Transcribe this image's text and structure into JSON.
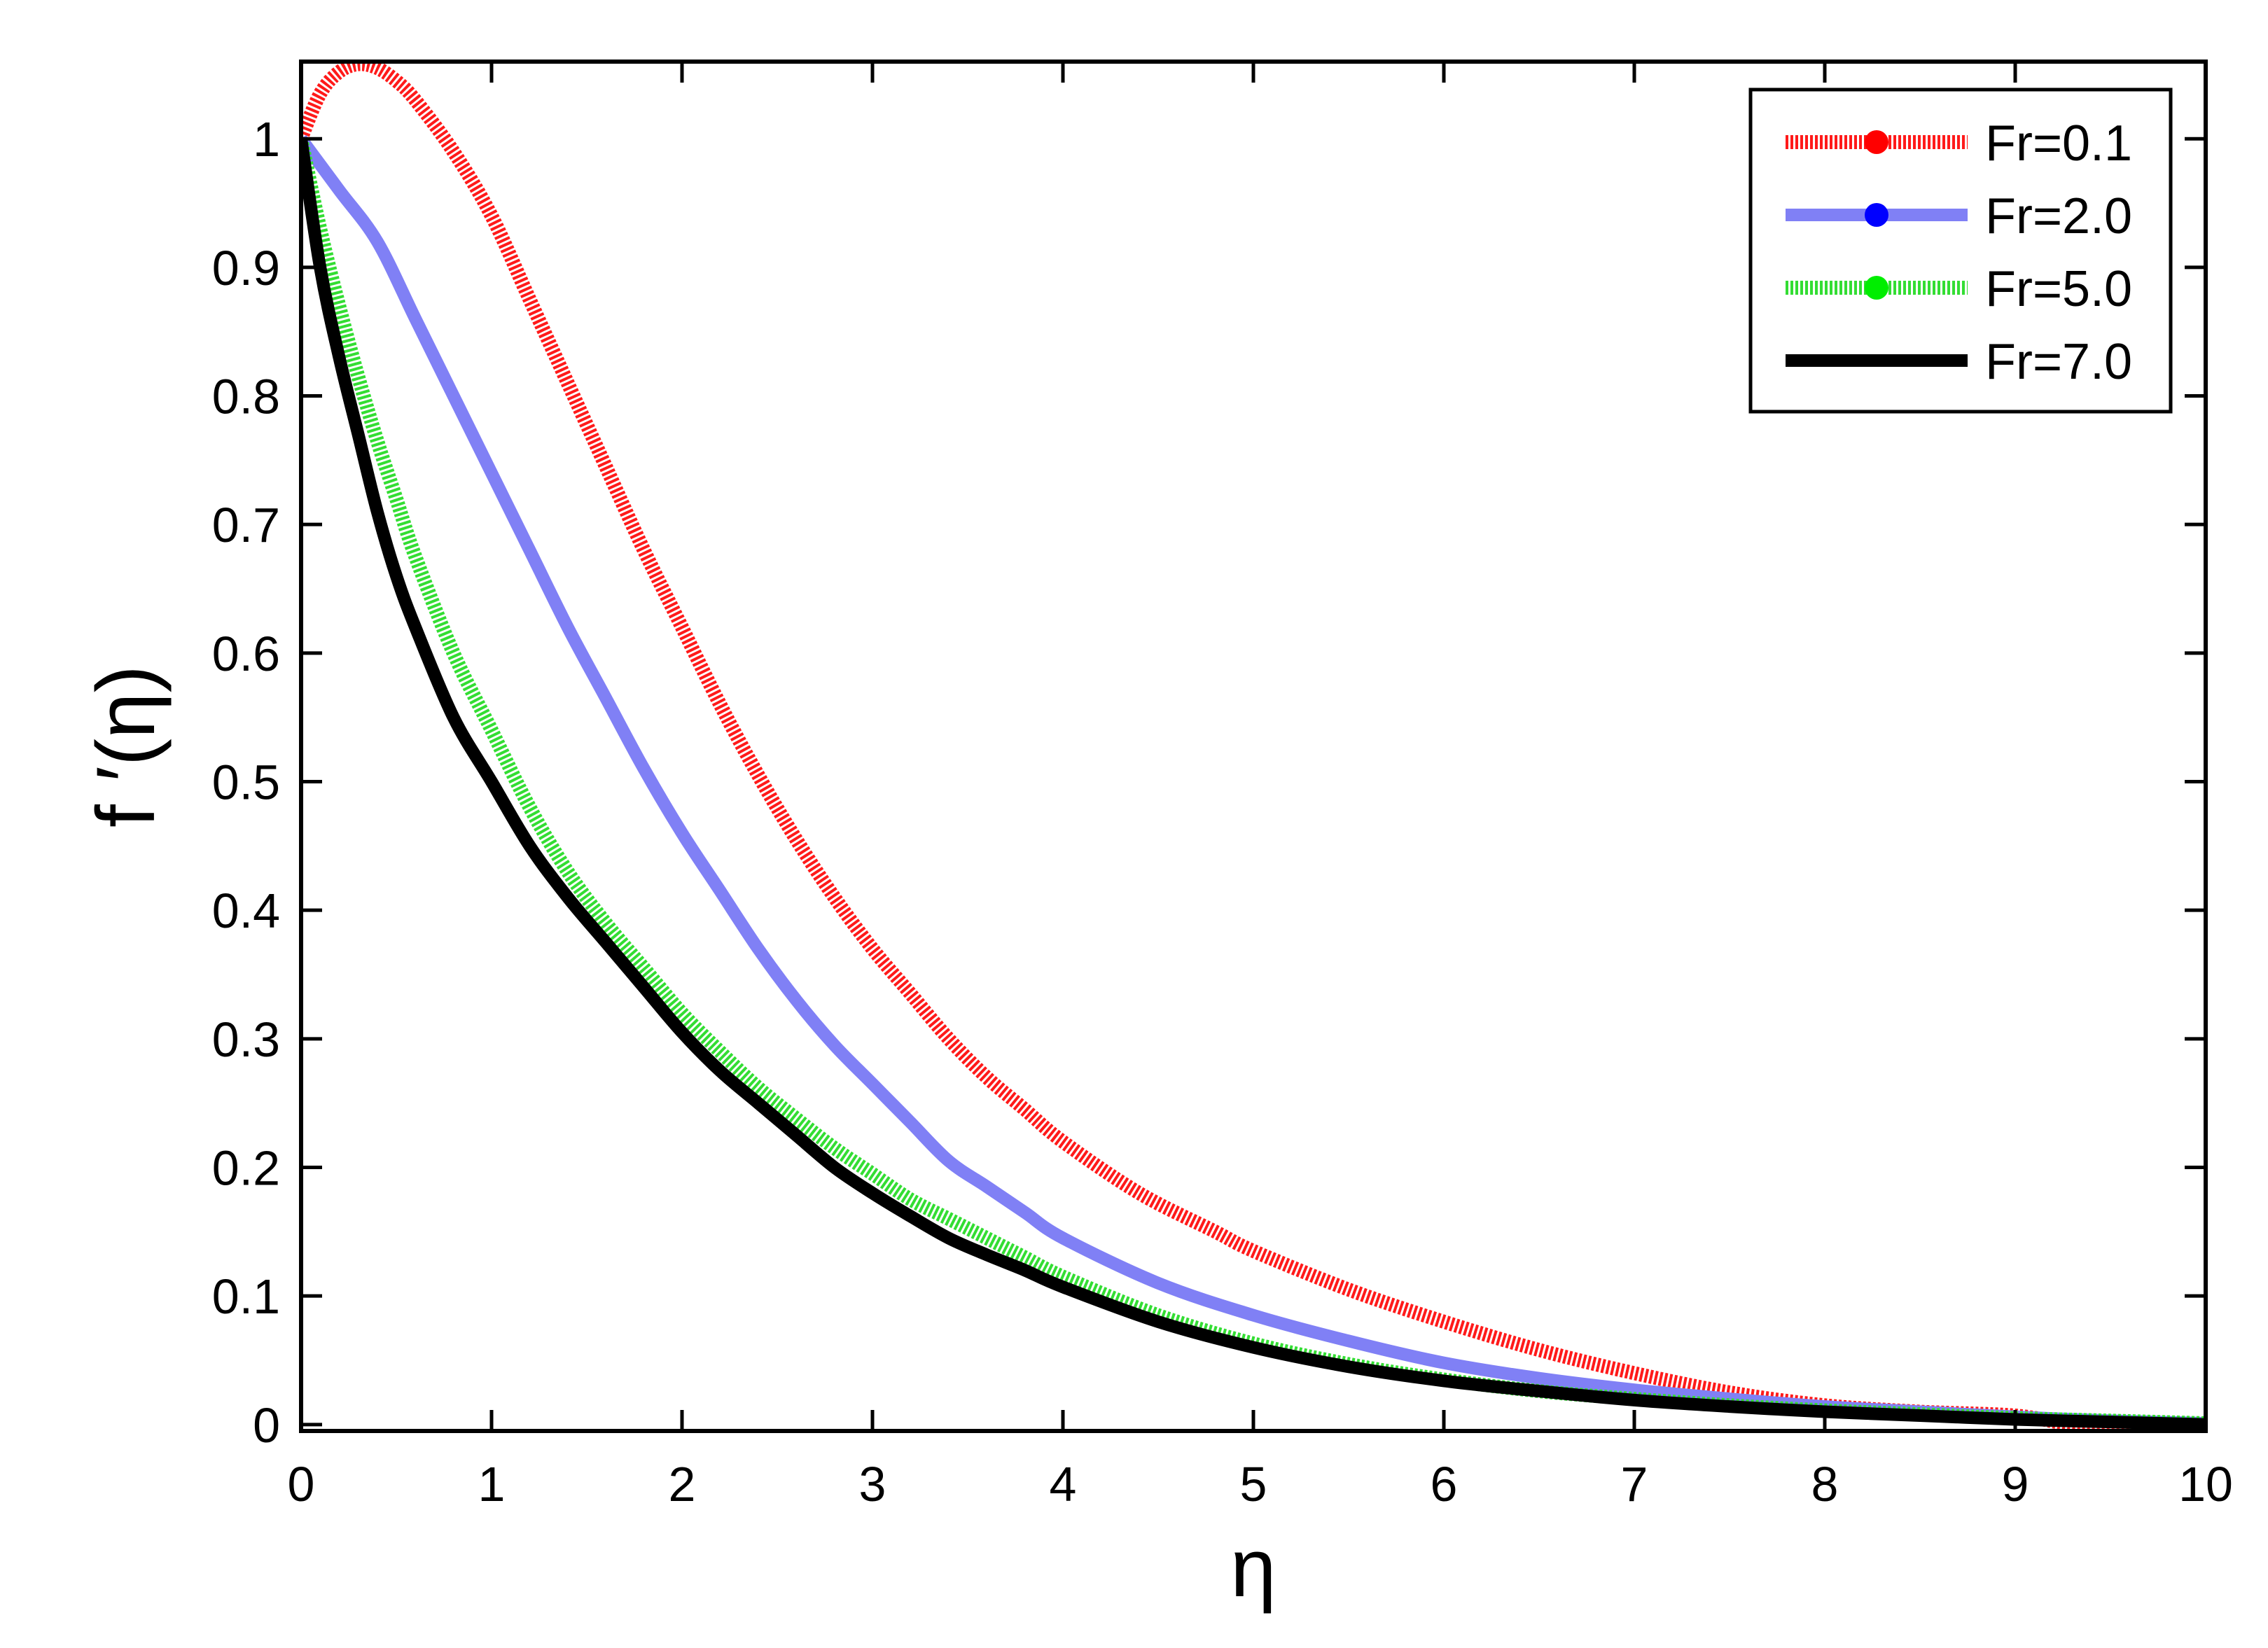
{
  "chart_data": {
    "type": "line",
    "title": "",
    "xlabel": "η",
    "ylabel": "f ′(η)",
    "xlim": [
      0,
      10
    ],
    "ylim": [
      -0.005,
      1.06
    ],
    "xticks": [
      0,
      1,
      2,
      3,
      4,
      5,
      6,
      7,
      8,
      9,
      10
    ],
    "xtick_labels": [
      "0",
      "1",
      "2",
      "3",
      "4",
      "5",
      "6",
      "7",
      "8",
      "9",
      "10"
    ],
    "yticks": [
      0,
      0.1,
      0.2,
      0.3,
      0.4,
      0.5,
      0.6,
      0.7,
      0.8,
      0.9,
      1.0
    ],
    "ytick_labels": [
      "0",
      "0.1",
      "0.2",
      "0.3",
      "0.4",
      "0.5",
      "0.6",
      "0.7",
      "0.8",
      "0.9",
      "1"
    ],
    "grid": false,
    "legend_position": "top-right",
    "series": [
      {
        "name": "Fr=0.1",
        "color": "#ff1a1a",
        "marker_color": "#ff0000",
        "style": "dotted-thick",
        "x": [
          0,
          0.1,
          0.2,
          0.3,
          0.4,
          0.5,
          0.6,
          0.8,
          1.0,
          1.2,
          1.4,
          1.6,
          1.8,
          2.0,
          2.2,
          2.4,
          2.6,
          2.8,
          3.0,
          3.2,
          3.4,
          3.6,
          3.8,
          4.0,
          4.4,
          4.8,
          5.0,
          5.5,
          6.0,
          6.5,
          7.0,
          7.5,
          8.0,
          8.5,
          9.0,
          9.3,
          9.6,
          10.0
        ],
        "y": [
          1.0,
          1.035,
          1.052,
          1.058,
          1.055,
          1.045,
          1.03,
          0.99,
          0.94,
          0.875,
          0.81,
          0.745,
          0.68,
          0.62,
          0.56,
          0.505,
          0.455,
          0.41,
          0.37,
          0.335,
          0.3,
          0.27,
          0.245,
          0.22,
          0.18,
          0.15,
          0.135,
          0.105,
          0.08,
          0.058,
          0.04,
          0.025,
          0.015,
          0.01,
          0.007,
          0.0,
          -0.003,
          -0.003
        ]
      },
      {
        "name": "Fr=2.0",
        "color": "#8080f5",
        "marker_color": "#0000ff",
        "style": "solid-thick",
        "x": [
          0,
          0.2,
          0.4,
          0.6,
          0.8,
          1.0,
          1.2,
          1.4,
          1.6,
          1.8,
          2.0,
          2.2,
          2.4,
          2.6,
          2.8,
          3.0,
          3.2,
          3.4,
          3.6,
          3.8,
          4.0,
          4.5,
          5.0,
          5.5,
          6.0,
          6.5,
          7.0,
          7.5,
          8.0,
          8.5,
          9.0,
          9.5,
          10.0
        ],
        "y": [
          1.0,
          0.96,
          0.92,
          0.86,
          0.8,
          0.74,
          0.68,
          0.62,
          0.565,
          0.51,
          0.46,
          0.415,
          0.37,
          0.33,
          0.295,
          0.265,
          0.235,
          0.205,
          0.185,
          0.165,
          0.145,
          0.11,
          0.085,
          0.065,
          0.048,
          0.036,
          0.027,
          0.02,
          0.014,
          0.01,
          0.006,
          0.003,
          0.001
        ]
      },
      {
        "name": "Fr=5.0",
        "color": "#33dd33",
        "marker_color": "#00ee00",
        "style": "dotted-thick",
        "x": [
          0,
          0.1,
          0.2,
          0.3,
          0.4,
          0.5,
          0.6,
          0.8,
          1.0,
          1.2,
          1.4,
          1.6,
          1.8,
          2.0,
          2.2,
          2.4,
          2.6,
          2.8,
          3.0,
          3.2,
          3.4,
          3.6,
          3.8,
          4.0,
          4.5,
          5.0,
          5.5,
          6.0,
          6.5,
          7.0,
          7.5,
          8.0,
          8.5,
          9.0,
          9.5,
          10.0
        ],
        "y": [
          1.0,
          0.93,
          0.87,
          0.815,
          0.765,
          0.72,
          0.675,
          0.6,
          0.54,
          0.48,
          0.43,
          0.39,
          0.355,
          0.32,
          0.29,
          0.262,
          0.238,
          0.215,
          0.195,
          0.175,
          0.16,
          0.145,
          0.13,
          0.115,
          0.085,
          0.063,
          0.047,
          0.035,
          0.026,
          0.02,
          0.015,
          0.011,
          0.008,
          0.005,
          0.003,
          0.001
        ]
      },
      {
        "name": "Fr=7.0",
        "color": "#000000",
        "marker_color": "#000000",
        "style": "solid-thick",
        "x": [
          0,
          0.1,
          0.2,
          0.3,
          0.4,
          0.5,
          0.6,
          0.8,
          1.0,
          1.2,
          1.4,
          1.6,
          1.8,
          2.0,
          2.2,
          2.4,
          2.6,
          2.8,
          3.0,
          3.2,
          3.4,
          3.6,
          3.8,
          4.0,
          4.5,
          5.0,
          5.5,
          6.0,
          6.5,
          7.0,
          7.5,
          8.0,
          8.5,
          9.0,
          9.5,
          10.0
        ],
        "y": [
          1.0,
          0.9,
          0.83,
          0.77,
          0.71,
          0.66,
          0.62,
          0.55,
          0.5,
          0.45,
          0.41,
          0.375,
          0.34,
          0.305,
          0.275,
          0.25,
          0.225,
          0.2,
          0.18,
          0.162,
          0.145,
          0.132,
          0.12,
          0.107,
          0.08,
          0.06,
          0.045,
          0.034,
          0.026,
          0.019,
          0.014,
          0.01,
          0.007,
          0.004,
          0.002,
          0.0
        ]
      }
    ]
  }
}
